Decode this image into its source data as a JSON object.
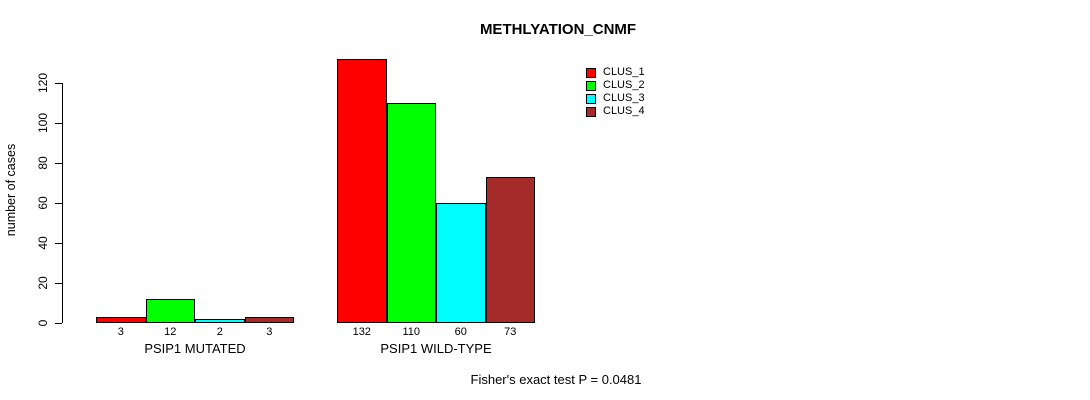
{
  "title": "METHLYATION_CNMF",
  "footer": "Fisher's exact test P = 0.0481",
  "colors": {
    "background": "#ffffff",
    "text": "#000000",
    "bar_border": "#000000",
    "clus_1": "#ff0000",
    "clus_2": "#00ff00",
    "clus_3": "#00ffff",
    "clus_4": "#a52a2a"
  },
  "chart_data": {
    "type": "bar",
    "title": "METHLYATION_CNMF",
    "ylabel": "number of cases",
    "xlabel": "",
    "categories": [
      "PSIP1 MUTATED",
      "PSIP1 WILD-TYPE"
    ],
    "series": [
      {
        "name": "CLUS_1",
        "color": "#ff0000",
        "values": [
          3,
          132
        ]
      },
      {
        "name": "CLUS_2",
        "color": "#00ff00",
        "values": [
          12,
          110
        ]
      },
      {
        "name": "CLUS_3",
        "color": "#00ffff",
        "values": [
          2,
          60
        ]
      },
      {
        "name": "CLUS_4",
        "color": "#a52a2a",
        "values": [
          3,
          73
        ]
      }
    ],
    "yticks": [
      0,
      20,
      40,
      60,
      80,
      100,
      120
    ],
    "ylim": [
      0,
      132
    ],
    "grid": false,
    "bar_value_labels_shown": true,
    "legend_position": "top-right",
    "annotation": "Fisher's exact test P = 0.0481"
  }
}
